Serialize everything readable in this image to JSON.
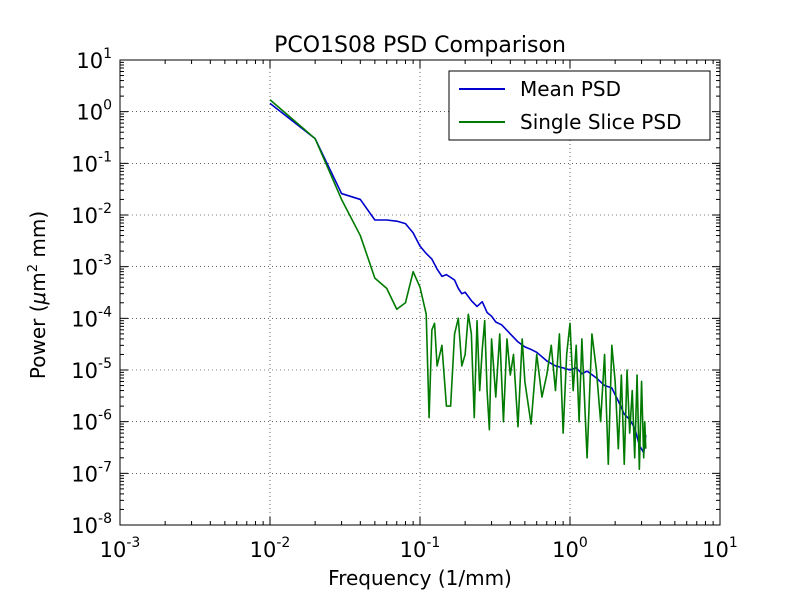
{
  "chart_data": {
    "type": "line",
    "title": "PCO1S08 PSD Comparison",
    "xlabel": "Frequency (1/mm)",
    "ylabel": {
      "prefix": "Power (",
      "greek": "μ",
      "unit": "m",
      "sup": "2",
      "suffix": " mm)"
    },
    "x_scale": "log",
    "y_scale": "log",
    "xlim": [
      0.001,
      10
    ],
    "ylim": [
      1e-08,
      10
    ],
    "grid": true,
    "legend_position": "top-right",
    "x_ticks": [
      {
        "value": 0.001,
        "base": "10",
        "exp": "-3"
      },
      {
        "value": 0.01,
        "base": "10",
        "exp": "-2"
      },
      {
        "value": 0.1,
        "base": "10",
        "exp": "-1"
      },
      {
        "value": 1,
        "base": "10",
        "exp": "0"
      },
      {
        "value": 10,
        "base": "10",
        "exp": "1"
      }
    ],
    "y_ticks": [
      {
        "value": 1e-08,
        "base": "10",
        "exp": "-8"
      },
      {
        "value": 1e-07,
        "base": "10",
        "exp": "-7"
      },
      {
        "value": 1e-06,
        "base": "10",
        "exp": "-6"
      },
      {
        "value": 1e-05,
        "base": "10",
        "exp": "-5"
      },
      {
        "value": 0.0001,
        "base": "10",
        "exp": "-4"
      },
      {
        "value": 0.001,
        "base": "10",
        "exp": "-3"
      },
      {
        "value": 0.01,
        "base": "10",
        "exp": "-2"
      },
      {
        "value": 0.1,
        "base": "10",
        "exp": "-1"
      },
      {
        "value": 1,
        "base": "10",
        "exp": "0"
      },
      {
        "value": 10,
        "base": "10",
        "exp": "1"
      }
    ],
    "series": [
      {
        "name": "Mean PSD",
        "color": "#0000cc",
        "x": [
          0.01,
          0.02,
          0.03,
          0.04,
          0.05,
          0.06,
          0.07,
          0.08,
          0.09,
          0.1,
          0.11,
          0.12,
          0.13,
          0.14,
          0.15,
          0.16,
          0.17,
          0.18,
          0.19,
          0.2,
          0.22,
          0.24,
          0.26,
          0.28,
          0.3,
          0.32,
          0.35,
          0.4,
          0.45,
          0.5,
          0.55,
          0.6,
          0.7,
          0.8,
          0.9,
          1.0,
          1.1,
          1.2,
          1.3,
          1.5,
          1.7,
          1.9,
          2.1,
          2.3,
          2.5,
          2.7,
          2.9,
          3.1,
          3.2
        ],
        "y": [
          1.45,
          0.3,
          0.026,
          0.02,
          0.008,
          0.008,
          0.0076,
          0.0068,
          0.0045,
          0.0025,
          0.0018,
          0.0014,
          0.0009,
          0.00065,
          0.0007,
          0.00062,
          0.00055,
          0.00038,
          0.0003,
          0.00032,
          0.00022,
          0.00017,
          0.00021,
          0.00013,
          0.00011,
          8.5e-05,
          7.5e-05,
          5e-05,
          3.5e-05,
          2.8e-05,
          2.5e-05,
          2.2e-05,
          1.5e-05,
          1.2e-05,
          1.1e-05,
          1e-05,
          1.1e-05,
          8.5e-06,
          9.5e-06,
          7e-06,
          5e-06,
          4.5e-06,
          2.5e-06,
          1.4e-06,
          1.1e-06,
          7.5e-07,
          3.5e-07,
          2.5e-07,
          5.5e-07
        ]
      },
      {
        "name": "Single Slice PSD",
        "color": "#007a00",
        "x": [
          0.01,
          0.02,
          0.03,
          0.04,
          0.05,
          0.06,
          0.07,
          0.08,
          0.09,
          0.1,
          0.11,
          0.115,
          0.12,
          0.125,
          0.13,
          0.14,
          0.15,
          0.16,
          0.17,
          0.18,
          0.19,
          0.2,
          0.21,
          0.22,
          0.23,
          0.24,
          0.25,
          0.26,
          0.27,
          0.28,
          0.29,
          0.3,
          0.32,
          0.34,
          0.36,
          0.38,
          0.4,
          0.42,
          0.45,
          0.48,
          0.5,
          0.55,
          0.6,
          0.65,
          0.7,
          0.75,
          0.8,
          0.85,
          0.9,
          0.95,
          1.0,
          1.05,
          1.1,
          1.15,
          1.2,
          1.3,
          1.4,
          1.5,
          1.6,
          1.7,
          1.8,
          1.9,
          2.0,
          2.1,
          2.2,
          2.3,
          2.4,
          2.5,
          2.6,
          2.7,
          2.8,
          2.9,
          3.0,
          3.1,
          3.15,
          3.2
        ],
        "y": [
          1.7,
          0.3,
          0.02,
          0.004,
          0.0006,
          0.00038,
          0.00015,
          0.0002,
          0.0008,
          0.0004,
          0.00012,
          1.2e-06,
          6e-05,
          8e-05,
          1.2e-05,
          3e-05,
          2e-06,
          2e-06,
          5e-05,
          0.0001,
          1.2e-05,
          2e-05,
          0.00012,
          5e-05,
          1.2e-06,
          9e-05,
          4e-06,
          2.5e-05,
          9e-05,
          4e-06,
          7e-07,
          4e-05,
          3e-06,
          5e-05,
          1e-06,
          4e-05,
          8e-06,
          2e-05,
          8e-07,
          4e-05,
          6e-06,
          9e-07,
          2e-05,
          3e-06,
          8e-06,
          3e-05,
          4e-06,
          5e-05,
          6e-07,
          2e-05,
          8e-05,
          4e-06,
          3e-05,
          1e-06,
          4e-05,
          2e-07,
          5e-05,
          1e-05,
          1e-06,
          2e-05,
          1.5e-07,
          3e-05,
          6e-06,
          3e-07,
          8e-06,
          1.5e-07,
          1e-05,
          6e-07,
          4e-06,
          2e-07,
          8e-06,
          1.2e-07,
          6e-06,
          2e-07,
          1e-06,
          3e-07
        ]
      }
    ]
  }
}
